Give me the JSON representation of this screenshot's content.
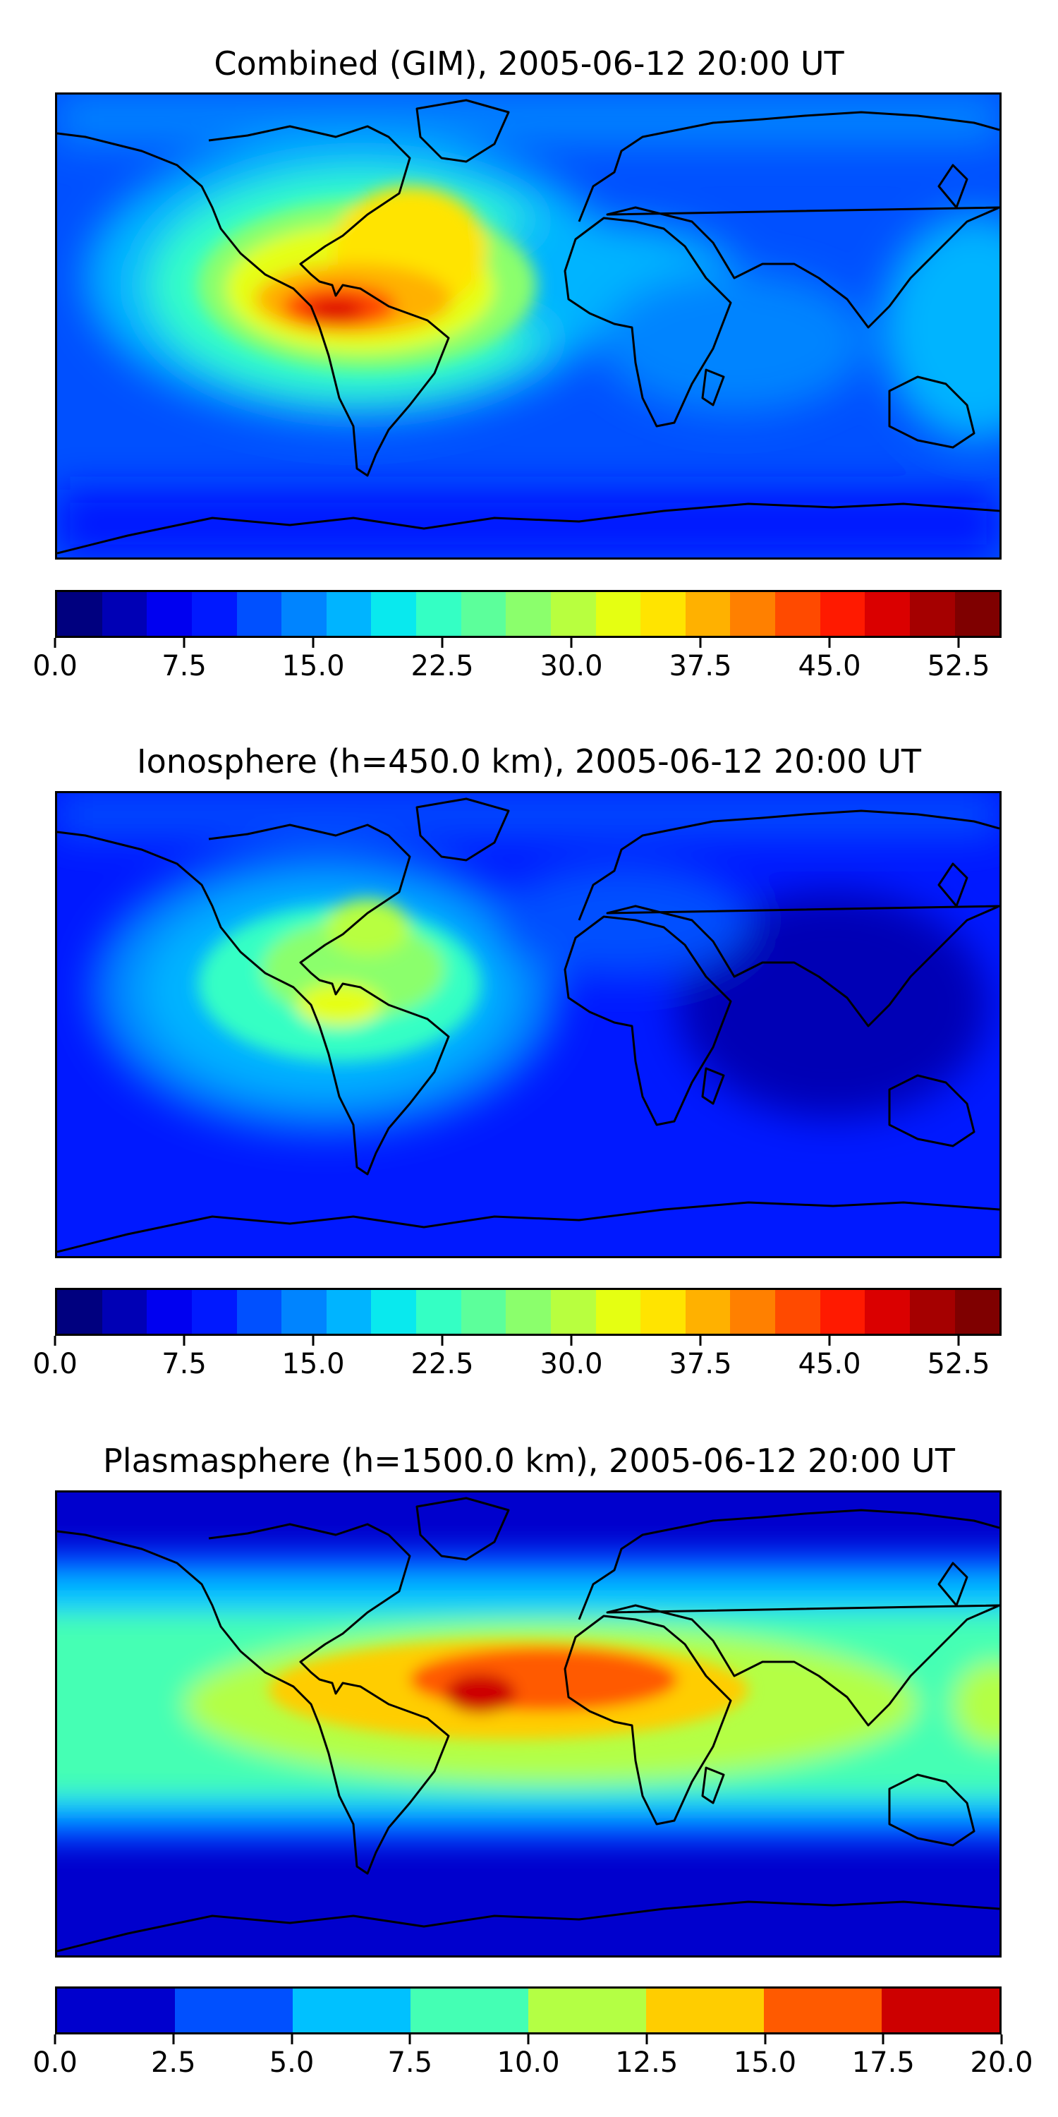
{
  "panels": [
    {
      "title": "Combined (GIM), 2005-06-12 20:00 UT",
      "colorbar": {
        "min": 0.0,
        "max": 55.0,
        "colors": [
          "#00007f",
          "#0000b5",
          "#0000f0",
          "#0019ff",
          "#0050ff",
          "#0084ff",
          "#00b4ff",
          "#09e9ee",
          "#34ffc4",
          "#5cff9b",
          "#8bff6c",
          "#b8ff3f",
          "#e5ff12",
          "#ffe400",
          "#ffb100",
          "#ff8000",
          "#ff4a00",
          "#ff1a00",
          "#da0000",
          "#a50000",
          "#7f0000"
        ],
        "ticks": [
          "0.0",
          "7.5",
          "15.0",
          "22.5",
          "30.0",
          "37.5",
          "45.0",
          "52.5"
        ],
        "tick_values": [
          0.0,
          7.5,
          15.0,
          22.5,
          30.0,
          37.5,
          45.0,
          52.5
        ]
      },
      "map_features": {
        "peak_value_approx": 52.5,
        "peak_region": "Caribbean / northern South America",
        "background_value_approx": 10
      }
    },
    {
      "title": "Ionosphere  (h=450.0 km), 2005-06-12 20:00 UT",
      "colorbar": {
        "min": 0.0,
        "max": 55.0,
        "colors": [
          "#00007f",
          "#0000b5",
          "#0000f0",
          "#0019ff",
          "#0050ff",
          "#0084ff",
          "#00b4ff",
          "#09e9ee",
          "#34ffc4",
          "#5cff9b",
          "#8bff6c",
          "#b8ff3f",
          "#e5ff12",
          "#ffe400",
          "#ffb100",
          "#ff8000",
          "#ff4a00",
          "#ff1a00",
          "#da0000",
          "#a50000",
          "#7f0000"
        ],
        "ticks": [
          "0.0",
          "7.5",
          "15.0",
          "22.5",
          "30.0",
          "37.5",
          "45.0",
          "52.5"
        ],
        "tick_values": [
          0.0,
          7.5,
          15.0,
          22.5,
          30.0,
          37.5,
          45.0,
          52.5
        ]
      },
      "map_features": {
        "peak_value_approx": 35,
        "peak_region": "northern South America",
        "background_value_approx": 7.5
      }
    },
    {
      "title": "Plasmasphere (h=1500.0 km), 2005-06-12 20:00 UT",
      "colorbar": {
        "min": 0.0,
        "max": 20.0,
        "colors": [
          "#0000cd",
          "#0050ff",
          "#00c1ff",
          "#44ffb4",
          "#b4ff44",
          "#ffcd00",
          "#ff5a00",
          "#cd0000"
        ],
        "ticks": [
          "0.0",
          "2.5",
          "5.0",
          "7.5",
          "10.0",
          "12.5",
          "15.0",
          "17.5",
          "20.0"
        ],
        "tick_values": [
          0.0,
          2.5,
          5.0,
          7.5,
          10.0,
          12.5,
          15.0,
          17.5,
          20.0
        ]
      },
      "map_features": {
        "peak_value_approx": 18,
        "peak_region": "West Africa",
        "background_value_approx": 2.5
      }
    }
  ]
}
